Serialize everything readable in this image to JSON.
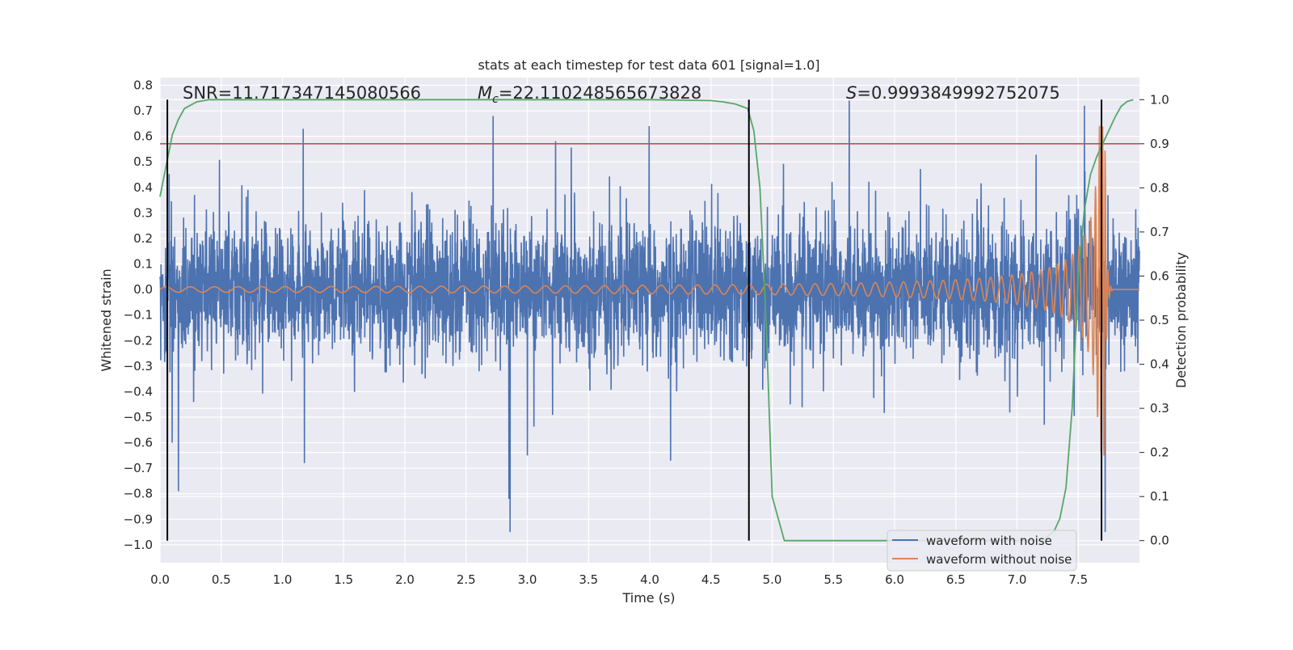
{
  "chart_data": {
    "type": "line",
    "title": "stats at each timestep for test data 601 [signal=1.0]",
    "xlabel": "Time (s)",
    "ylabel_left": "Whitened strain",
    "ylabel_right": "Detection probability",
    "xlim": [
      0.0,
      8.0
    ],
    "ylim_left": [
      -1.07,
      0.83
    ],
    "ylim_right": [
      -0.05,
      1.05
    ],
    "xticks": [
      0.0,
      0.5,
      1.0,
      1.5,
      2.0,
      2.5,
      3.0,
      3.5,
      4.0,
      4.5,
      5.0,
      5.5,
      6.0,
      6.5,
      7.0,
      7.5
    ],
    "xtick_labels": [
      "0.0",
      "0.5",
      "1.0",
      "1.5",
      "2.0",
      "2.5",
      "3.0",
      "3.5",
      "4.0",
      "4.5",
      "5.0",
      "5.5",
      "6.0",
      "6.5",
      "7.0",
      "7.5"
    ],
    "yticks_left": [
      0.8,
      0.7,
      0.6,
      0.5,
      0.4,
      0.3,
      0.2,
      0.1,
      0.0,
      -0.1,
      -0.2,
      -0.3,
      -0.4,
      -0.5,
      -0.6,
      -0.7,
      -0.8,
      -0.9,
      -1.0
    ],
    "ytick_labels_left": [
      "0.8",
      "0.7",
      "0.6",
      "0.5",
      "0.4",
      "0.3",
      "0.2",
      "0.1",
      "0.0",
      "−0.1",
      "−0.2",
      "−0.3",
      "−0.4",
      "−0.5",
      "−0.6",
      "−0.7",
      "−0.8",
      "−0.9",
      "−1.0"
    ],
    "yticks_right": [
      1.0,
      0.9,
      0.8,
      0.7,
      0.6,
      0.5,
      0.4,
      0.3,
      0.2,
      0.1,
      0.0
    ],
    "ytick_labels_right": [
      "1.0",
      "0.9",
      "0.8",
      "0.7",
      "0.6",
      "0.5",
      "0.4",
      "0.3",
      "0.2",
      "0.1",
      "0.0"
    ],
    "annotations": {
      "snr": "SNR=11.717347145080566",
      "mc_symbol": "M",
      "mc_sub": "c",
      "mc_value": "=22.110248565673828",
      "s_symbol": "S",
      "s_value": "=0.9993849992752075"
    },
    "threshold_line": {
      "value": 0.9,
      "axis": "right"
    },
    "vertical_markers": [
      0.06,
      4.81,
      7.69
    ],
    "series": [
      {
        "name": "waveform with noise",
        "axis": "left",
        "color": "#4c72b0",
        "style": "noise",
        "duration": 8.0,
        "typical_amplitude": 0.22,
        "notable_peaks": [
          {
            "t": 0.1,
            "v": -0.6
          },
          {
            "t": 0.15,
            "v": -0.79
          },
          {
            "t": 1.17,
            "v": 0.63
          },
          {
            "t": 1.18,
            "v": -0.68
          },
          {
            "t": 2.72,
            "v": 0.68
          },
          {
            "t": 2.86,
            "v": -0.95
          },
          {
            "t": 2.85,
            "v": -0.82
          },
          {
            "t": 3.0,
            "v": -0.65
          },
          {
            "t": 4.17,
            "v": -0.67
          },
          {
            "t": 5.63,
            "v": 0.74
          },
          {
            "t": 7.55,
            "v": 0.72
          },
          {
            "t": 7.72,
            "v": -0.95
          }
        ]
      },
      {
        "name": "waveform without noise",
        "axis": "left",
        "color": "#dd8452",
        "style": "chirp",
        "merger_time": 7.72,
        "peak_amplitude": 0.65,
        "start_frequency": 5.0,
        "end_frequency": 45.0
      },
      {
        "name": "detection probability",
        "axis": "right",
        "color": "#55a868",
        "x": [
          0.0,
          0.05,
          0.1,
          0.15,
          0.2,
          0.3,
          0.4,
          0.6,
          1.0,
          2.0,
          3.0,
          4.0,
          4.5,
          4.6,
          4.7,
          4.75,
          4.8,
          4.85,
          4.9,
          4.95,
          5.0,
          5.1,
          5.5,
          6.0,
          7.0,
          7.2,
          7.3,
          7.35,
          7.4,
          7.45,
          7.5,
          7.55,
          7.6,
          7.65,
          7.7,
          7.75,
          7.8,
          7.85,
          7.9,
          7.95
        ],
        "y": [
          0.78,
          0.85,
          0.92,
          0.955,
          0.98,
          0.995,
          1.0,
          1.0,
          1.0,
          1.0,
          1.0,
          1.0,
          0.998,
          0.995,
          0.99,
          0.985,
          0.98,
          0.93,
          0.8,
          0.5,
          0.1,
          0.0,
          0.0,
          0.0,
          0.0,
          0.0,
          0.02,
          0.05,
          0.12,
          0.3,
          0.6,
          0.75,
          0.83,
          0.87,
          0.9,
          0.93,
          0.96,
          0.985,
          0.996,
          1.0
        ]
      }
    ],
    "legend": {
      "position": "lower-right",
      "entries": [
        {
          "label": "waveform with noise",
          "color": "#4c72b0"
        },
        {
          "label": "waveform without noise",
          "color": "#dd8452"
        }
      ]
    },
    "colors": {
      "plot_background": "#eaeaf2",
      "grid": "#ffffff",
      "threshold": "#c44e52",
      "markers": "#000000"
    }
  }
}
